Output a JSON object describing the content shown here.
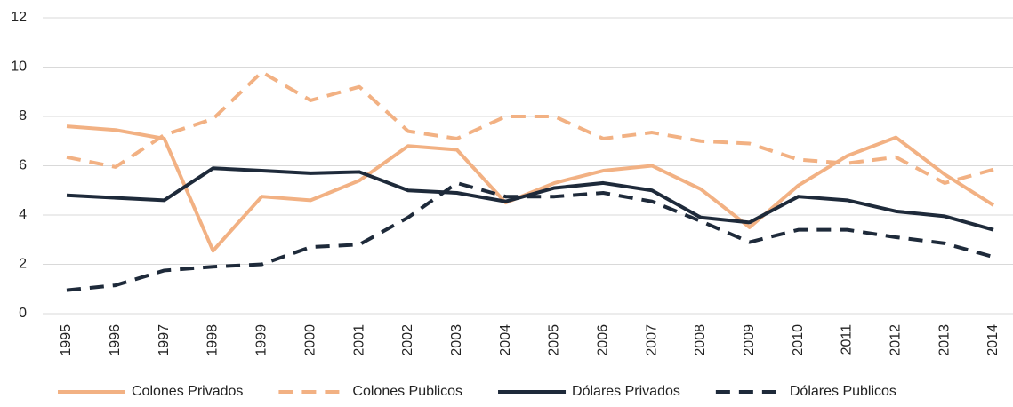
{
  "chart_data": {
    "type": "line",
    "categories": [
      "1995",
      "1996",
      "1997",
      "1998",
      "1999",
      "2000",
      "2001",
      "2002",
      "2003",
      "2004",
      "2005",
      "2006",
      "2007",
      "2008",
      "2009",
      "2010",
      "2011",
      "2012",
      "2013",
      "2014"
    ],
    "series": [
      {
        "name": "Colones Privados",
        "color": "#f2b183",
        "dashed": false,
        "values": [
          7.6,
          7.45,
          7.1,
          2.55,
          4.75,
          4.6,
          5.4,
          6.8,
          6.65,
          4.5,
          5.3,
          5.8,
          6.0,
          5.05,
          3.5,
          5.2,
          6.4,
          7.15,
          5.65,
          4.4
        ]
      },
      {
        "name": "Colones Publicos",
        "color": "#f2b183",
        "dashed": true,
        "values": [
          6.35,
          5.95,
          7.25,
          7.9,
          9.8,
          8.65,
          9.2,
          7.4,
          7.1,
          8.0,
          8.0,
          7.1,
          7.35,
          7.0,
          6.9,
          6.25,
          6.1,
          6.35,
          5.3,
          5.85
        ]
      },
      {
        "name": "Dólares Privados",
        "color": "#1e2a3a",
        "dashed": false,
        "values": [
          4.8,
          4.7,
          4.6,
          5.9,
          5.8,
          5.7,
          5.75,
          5.0,
          4.9,
          4.55,
          5.1,
          5.3,
          5.0,
          3.9,
          3.7,
          4.75,
          4.6,
          4.15,
          3.95,
          3.4
        ]
      },
      {
        "name": "Dólares Publicos",
        "color": "#1e2a3a",
        "dashed": true,
        "values": [
          0.95,
          1.15,
          1.75,
          1.9,
          2.0,
          2.7,
          2.8,
          3.9,
          5.3,
          4.75,
          4.75,
          4.9,
          4.55,
          3.75,
          2.9,
          3.4,
          3.4,
          3.1,
          2.85,
          2.3
        ]
      }
    ],
    "ylim": [
      0,
      12
    ],
    "yticks": [
      0,
      2,
      4,
      6,
      8,
      10,
      12
    ],
    "grid": true,
    "legend": "bottom"
  }
}
